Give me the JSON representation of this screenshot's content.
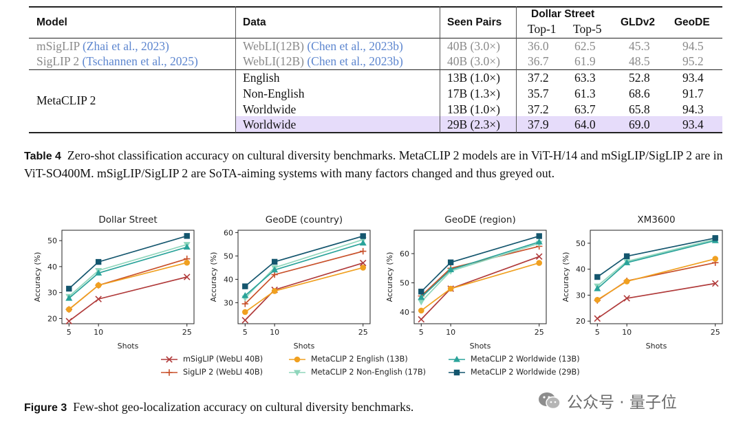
{
  "table": {
    "headers": {
      "model": "Model",
      "data": "Data",
      "seen_pairs": "Seen Pairs",
      "dollar_street": "Dollar Street",
      "top1": "Top-1",
      "top5": "Top-5",
      "gldv2": "GLDv2",
      "geode": "GeoDE"
    },
    "rows": [
      {
        "model": "mSigLIP",
        "model_cite": "(Zhai et al., 2023)",
        "data": "WebLI(12B)",
        "data_cite": "(Chen et al., 2023b)",
        "seen": "40B (3.0×)",
        "top1": "36.0",
        "top5": "62.5",
        "gldv2": "45.3",
        "geode": "94.5"
      },
      {
        "model": "SigLIP 2",
        "model_cite": "(Tschannen et al., 2025)",
        "data": "WebLI(12B)",
        "data_cite": "(Chen et al., 2023b)",
        "seen": "40B (3.0×)",
        "top1": "36.7",
        "top5": "61.9",
        "gldv2": "48.5",
        "geode": "95.2"
      },
      {
        "model": "MetaCLIP 2",
        "data": "English",
        "seen": "13B (1.0×)",
        "top1": "37.2",
        "top5": "63.3",
        "gldv2": "52.8",
        "geode": "93.4"
      },
      {
        "data": "Non-English",
        "seen": "17B (1.3×)",
        "top1": "35.7",
        "top5": "61.3",
        "gldv2": "68.6",
        "geode": "91.7"
      },
      {
        "data": "Worldwide",
        "seen": "13B (1.0×)",
        "top1": "37.2",
        "top5": "63.7",
        "gldv2": "65.8",
        "geode": "94.3"
      },
      {
        "data": "Worldwide",
        "seen": "29B (2.3×)",
        "top1": "37.9",
        "top5": "64.0",
        "gldv2": "69.0",
        "geode": "93.4"
      }
    ]
  },
  "table_caption": {
    "label": "Table 4",
    "text": "Zero-shot classification accuracy on cultural diversity benchmarks. MetaCLIP 2 models are in ViT-H/14 and mSigLIP/SigLIP 2 are in ViT-SO400M. mSigLIP/SigLIP 2 are SoTA-aiming systems with many factors changed and thus greyed out."
  },
  "figure_caption": {
    "label": "Figure 3",
    "text": "Few-shot geo-localization accuracy on cultural diversity benchmarks."
  },
  "watermark": "公众号 · 量子位",
  "colors": {
    "msiglip": "#b03a3a",
    "siglip2": "#c8502a",
    "english": "#f0a020",
    "nonenglish": "#8fd6bc",
    "worldwide13": "#2aa39a",
    "worldwide29": "#14566e",
    "highlight": "#e6dcfa",
    "cite": "#2a63c6"
  },
  "legend": [
    {
      "key": "msiglip",
      "label": "mSigLIP (WebLI 40B)",
      "marker": "x"
    },
    {
      "key": "siglip2",
      "label": "SigLIP 2 (WebLI 40B)",
      "marker": "plus"
    },
    {
      "key": "english",
      "label": "MetaCLIP 2 English (13B)",
      "marker": "circle"
    },
    {
      "key": "nonenglish",
      "label": "MetaCLIP 2 Non-English (17B)",
      "marker": "tri-down"
    },
    {
      "key": "worldwide13",
      "label": "MetaCLIP 2 Worldwide (13B)",
      "marker": "tri-up"
    },
    {
      "key": "worldwide29",
      "label": "MetaCLIP 2 Worldwide (29B)",
      "marker": "square"
    }
  ],
  "chart_data": [
    {
      "type": "line",
      "title": "Dollar Street",
      "xlabel": "Shots",
      "ylabel": "Accuracy (%)",
      "x": [
        5,
        10,
        25
      ],
      "xticks": [
        "5",
        "10",
        "25"
      ],
      "yticks": [
        20,
        30,
        40,
        50
      ],
      "ylim": [
        18,
        54
      ],
      "series": [
        {
          "key": "msiglip",
          "name": "mSigLIP (WebLI 40B)",
          "values": [
            19.0,
            27.5,
            36.0
          ]
        },
        {
          "key": "siglip2",
          "name": "SigLIP 2 (WebLI 40B)",
          "values": [
            23.5,
            32.8,
            43.0
          ]
        },
        {
          "key": "english",
          "name": "MetaCLIP 2 English (13B)",
          "values": [
            23.5,
            32.8,
            41.5
          ]
        },
        {
          "key": "nonenglish",
          "name": "MetaCLIP 2 Non-English (17B)",
          "values": [
            28.5,
            38.5,
            48.5
          ]
        },
        {
          "key": "worldwide13",
          "name": "MetaCLIP 2 Worldwide (13B)",
          "values": [
            27.8,
            37.5,
            47.5
          ]
        },
        {
          "key": "worldwide29",
          "name": "MetaCLIP 2 Worldwide (29B)",
          "values": [
            31.5,
            41.8,
            51.8
          ]
        }
      ]
    },
    {
      "type": "line",
      "title": "GeoDE (country)",
      "xlabel": "Shots",
      "ylabel": "Accuracy (%)",
      "x": [
        5,
        10,
        25
      ],
      "xticks": [
        "5",
        "10",
        "25"
      ],
      "yticks": [
        30,
        40,
        50,
        60
      ],
      "ylim": [
        21,
        61
      ],
      "series": [
        {
          "key": "msiglip",
          "name": "mSigLIP (WebLI 40B)",
          "values": [
            22.5,
            35.5,
            47.0
          ]
        },
        {
          "key": "siglip2",
          "name": "SigLIP 2 (WebLI 40B)",
          "values": [
            29.5,
            42.0,
            52.0
          ]
        },
        {
          "key": "english",
          "name": "MetaCLIP 2 English (13B)",
          "values": [
            26.0,
            35.0,
            45.0
          ]
        },
        {
          "key": "nonenglish",
          "name": "MetaCLIP 2 Non-English (17B)",
          "values": [
            32.0,
            45.0,
            57.0
          ]
        },
        {
          "key": "worldwide13",
          "name": "MetaCLIP 2 Worldwide (13B)",
          "values": [
            33.0,
            44.0,
            55.5
          ]
        },
        {
          "key": "worldwide29",
          "name": "MetaCLIP 2 Worldwide (29B)",
          "values": [
            37.0,
            47.5,
            58.5
          ]
        }
      ]
    },
    {
      "type": "line",
      "title": "GeoDE (region)",
      "xlabel": "Shots",
      "ylabel": "Accuracy (%)",
      "x": [
        5,
        10,
        25
      ],
      "xticks": [
        "5",
        "10",
        "25"
      ],
      "yticks": [
        40,
        50,
        60
      ],
      "ylim": [
        36,
        68
      ],
      "series": [
        {
          "key": "msiglip",
          "name": "mSigLIP (WebLI 40B)",
          "values": [
            37.5,
            48.0,
            59.0
          ]
        },
        {
          "key": "siglip2",
          "name": "SigLIP 2 (WebLI 40B)",
          "values": [
            45.5,
            55.0,
            62.5
          ]
        },
        {
          "key": "english",
          "name": "MetaCLIP 2 English (13B)",
          "values": [
            40.5,
            48.0,
            56.8
          ]
        },
        {
          "key": "nonenglish",
          "name": "MetaCLIP 2 Non-English (17B)",
          "values": [
            43.5,
            54.0,
            63.5
          ]
        },
        {
          "key": "worldwide13",
          "name": "MetaCLIP 2 Worldwide (13B)",
          "values": [
            45.0,
            54.5,
            64.0
          ]
        },
        {
          "key": "worldwide29",
          "name": "MetaCLIP 2 Worldwide (29B)",
          "values": [
            47.0,
            57.0,
            66.0
          ]
        }
      ]
    },
    {
      "type": "line",
      "title": "XM3600",
      "xlabel": "Shots",
      "ylabel": "Accuracy (%)",
      "x": [
        5,
        10,
        25
      ],
      "xticks": [
        "5",
        "10",
        "25"
      ],
      "yticks": [
        20,
        30,
        40,
        50
      ],
      "ylim": [
        19,
        55
      ],
      "series": [
        {
          "key": "msiglip",
          "name": "mSigLIP (WebLI 40B)",
          "values": [
            21.0,
            28.8,
            34.5
          ]
        },
        {
          "key": "siglip2",
          "name": "SigLIP 2 (WebLI 40B)",
          "values": [
            28.0,
            35.5,
            42.5
          ]
        },
        {
          "key": "english",
          "name": "MetaCLIP 2 English (13B)",
          "values": [
            28.2,
            35.3,
            44.0
          ]
        },
        {
          "key": "nonenglish",
          "name": "MetaCLIP 2 Non-English (17B)",
          "values": [
            33.5,
            43.0,
            51.5
          ]
        },
        {
          "key": "worldwide13",
          "name": "MetaCLIP 2 Worldwide (13B)",
          "values": [
            32.5,
            42.5,
            51.0
          ]
        },
        {
          "key": "worldwide29",
          "name": "MetaCLIP 2 Worldwide (29B)",
          "values": [
            37.0,
            45.0,
            52.0
          ]
        }
      ]
    }
  ]
}
